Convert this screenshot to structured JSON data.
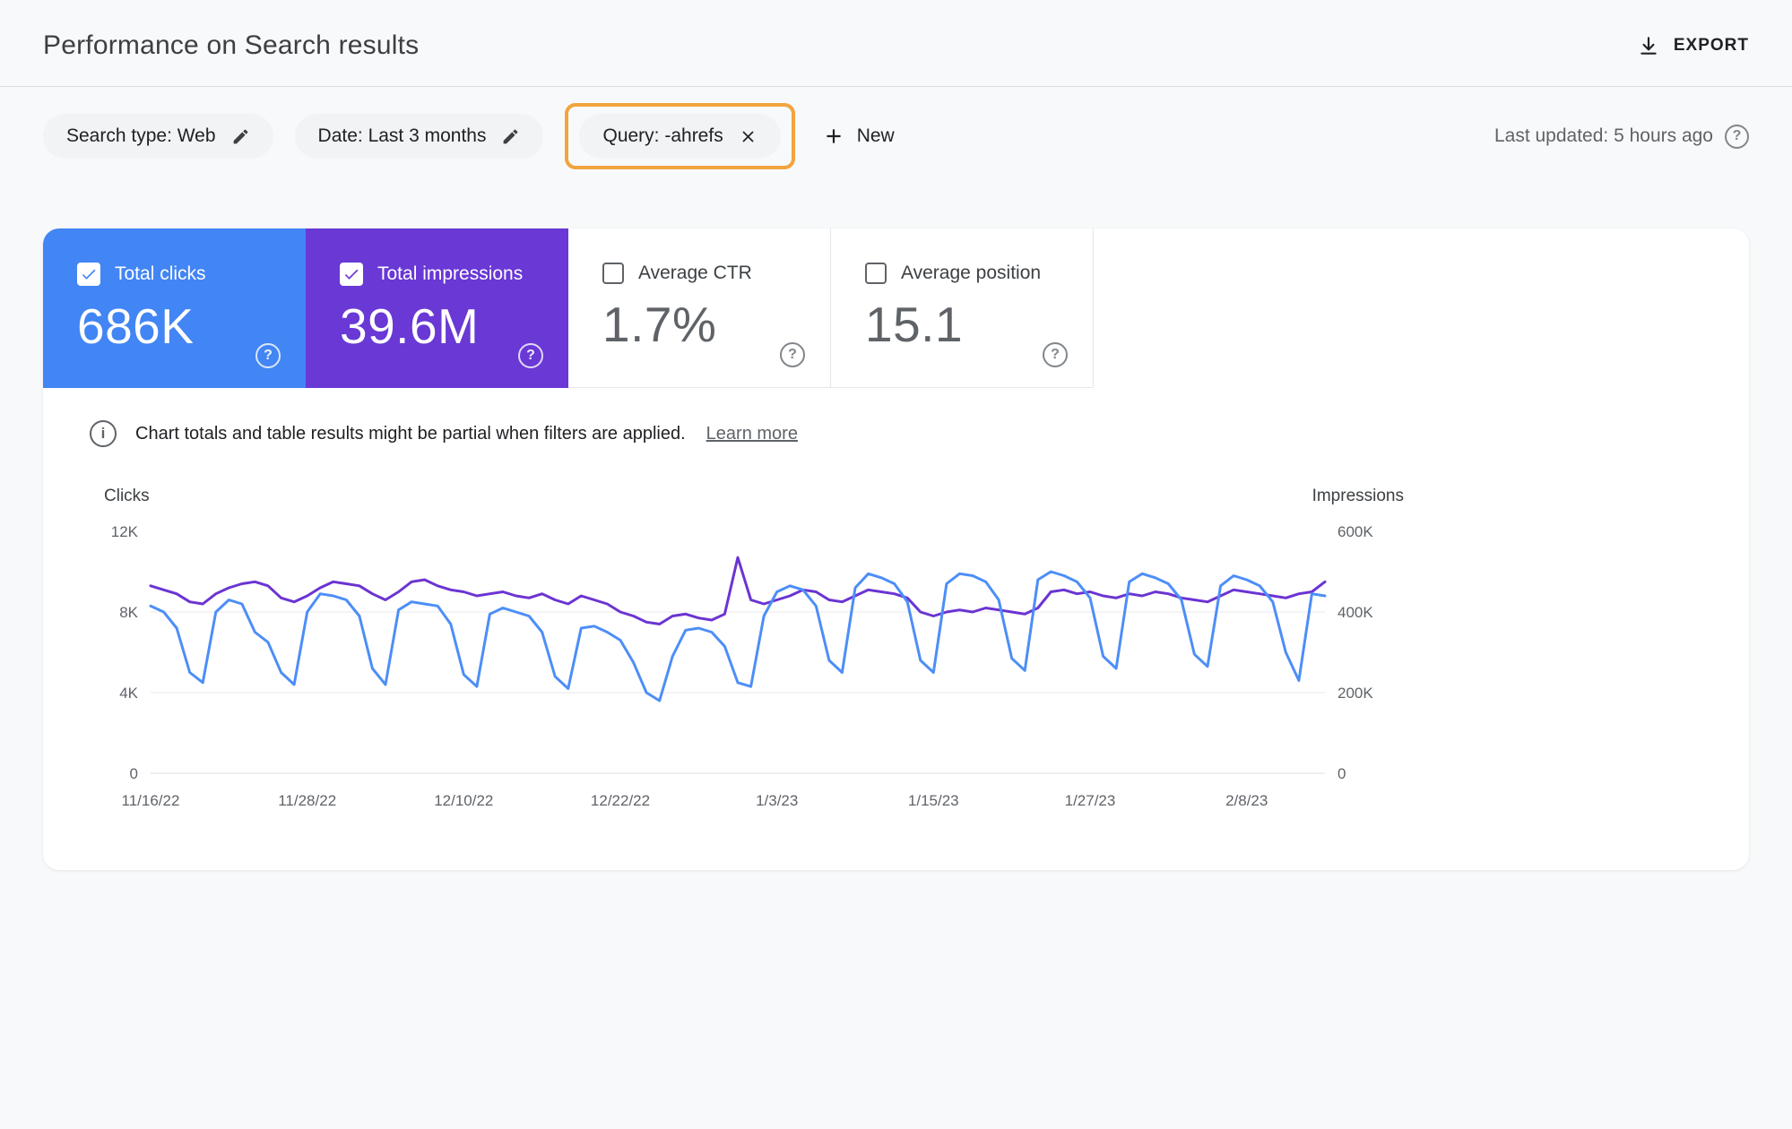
{
  "header": {
    "title": "Performance on Search results",
    "export_label": "EXPORT",
    "last_updated": "Last updated: 5 hours ago"
  },
  "filters": {
    "chips": [
      {
        "label": "Search type: Web",
        "action": "edit"
      },
      {
        "label": "Date: Last 3 months",
        "action": "edit"
      },
      {
        "label": "Query: -ahrefs",
        "action": "remove",
        "highlighted": true
      }
    ],
    "new_label": "New"
  },
  "colors": {
    "clicks": "#4285f4",
    "impressions": "#6938d5",
    "highlight_box": "#f2a43d"
  },
  "icons": {
    "help_glyph": "?",
    "info_glyph": "i"
  },
  "metrics": [
    {
      "label": "Total clicks",
      "value": "686K",
      "selected": true
    },
    {
      "label": "Total impressions",
      "value": "39.6M",
      "selected": true
    },
    {
      "label": "Average CTR",
      "value": "1.7%",
      "selected": false
    },
    {
      "label": "Average position",
      "value": "15.1",
      "selected": false
    }
  ],
  "notice": {
    "text": "Chart totals and table results might be partial when filters are applied.",
    "link": "Learn more"
  },
  "chart_data": {
    "type": "line",
    "left_axis": {
      "label": "Clicks",
      "ticks": [
        "12K",
        "8K",
        "4K",
        "0"
      ],
      "max": 12000
    },
    "right_axis": {
      "label": "Impressions",
      "ticks": [
        "600K",
        "400K",
        "200K",
        "0"
      ],
      "max": 600000
    },
    "x_tick_labels": [
      "11/16/22",
      "11/28/22",
      "12/10/22",
      "12/22/22",
      "1/3/23",
      "1/15/23",
      "1/27/23",
      "2/8/23"
    ],
    "x_tick_positions_days": [
      0,
      12,
      24,
      36,
      48,
      60,
      72,
      84
    ],
    "total_days": 90,
    "grid": "horizontal",
    "series": [
      {
        "name": "Total clicks",
        "axis": "left",
        "color": "#4d8ef7",
        "values": [
          8300,
          8000,
          7200,
          5000,
          4500,
          8000,
          8600,
          8400,
          7000,
          6500,
          5000,
          4400,
          8000,
          8900,
          8800,
          8600,
          7800,
          5200,
          4400,
          8100,
          8500,
          8400,
          8300,
          7400,
          4900,
          4300,
          7900,
          8200,
          8000,
          7800,
          7000,
          4800,
          4200,
          7200,
          7300,
          7000,
          6600,
          5500,
          4000,
          3600,
          5800,
          7100,
          7200,
          7000,
          6300,
          4500,
          4300,
          7800,
          9000,
          9300,
          9100,
          8300,
          5600,
          5000,
          9200,
          9900,
          9700,
          9400,
          8500,
          5600,
          5000,
          9400,
          9900,
          9800,
          9500,
          8600,
          5700,
          5100,
          9600,
          10000,
          9800,
          9500,
          8700,
          5800,
          5200,
          9500,
          9900,
          9700,
          9400,
          8600,
          5900,
          5300,
          9300,
          9800,
          9600,
          9300,
          8500,
          6000,
          4600,
          8900,
          8800
        ]
      },
      {
        "name": "Total impressions",
        "axis": "right",
        "color": "#6b34d2",
        "values": [
          465000,
          455000,
          445000,
          425000,
          420000,
          445000,
          460000,
          470000,
          475000,
          465000,
          435000,
          425000,
          440000,
          460000,
          475000,
          470000,
          465000,
          445000,
          430000,
          450000,
          475000,
          480000,
          465000,
          455000,
          450000,
          440000,
          445000,
          450000,
          440000,
          435000,
          445000,
          430000,
          420000,
          440000,
          430000,
          420000,
          400000,
          390000,
          375000,
          370000,
          390000,
          395000,
          385000,
          380000,
          395000,
          535000,
          430000,
          420000,
          430000,
          440000,
          455000,
          450000,
          430000,
          425000,
          440000,
          455000,
          450000,
          445000,
          435000,
          400000,
          390000,
          400000,
          405000,
          400000,
          410000,
          405000,
          400000,
          395000,
          410000,
          450000,
          455000,
          445000,
          450000,
          440000,
          435000,
          445000,
          440000,
          450000,
          445000,
          435000,
          430000,
          425000,
          440000,
          455000,
          450000,
          445000,
          440000,
          435000,
          445000,
          450000,
          475000
        ]
      }
    ]
  }
}
